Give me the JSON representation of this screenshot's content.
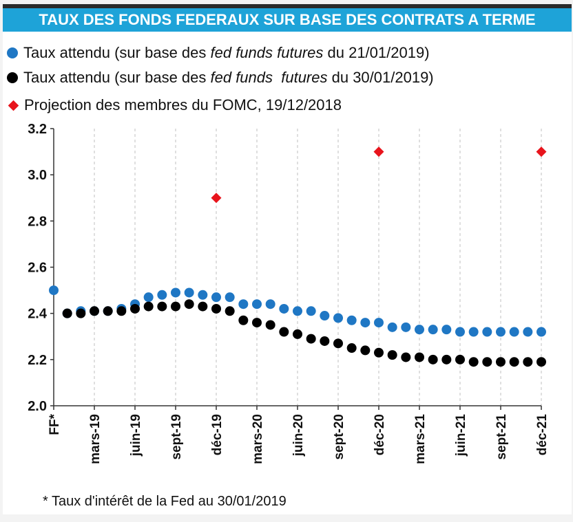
{
  "title": "TAUX DES FONDS FEDERAUX SUR BASE DES CONTRATS A TERME",
  "legend": [
    {
      "prefix": "Taux attendu (sur base des ",
      "italic": "fed funds futures",
      "suffix": " du 21/01/2019)",
      "color": "#1f77c4",
      "marker": "circle"
    },
    {
      "prefix": "Taux attendu (sur base des ",
      "italic": "fed funds  futures",
      "suffix": " du 30/01/2019)",
      "color": "#000000",
      "marker": "circle"
    },
    {
      "prefix": "Projection des membres du FOMC, 19/12/2018",
      "italic": "",
      "suffix": "",
      "color": "#e8141c",
      "marker": "diamond"
    }
  ],
  "footnote": "* Taux d'intérêt de la Fed au 30/01/2019",
  "chart_data": {
    "type": "scatter",
    "ylim": [
      2.0,
      3.2
    ],
    "yticks": [
      "2.0",
      "2.2",
      "2.4",
      "2.6",
      "2.8",
      "3.0",
      "3.2"
    ],
    "xticks": [
      "FF*",
      "mars-19",
      "juin-19",
      "sept-19",
      "déc-19",
      "mars-20",
      "juin-20",
      "sept-20",
      "déc-20",
      "mars-21",
      "juin-21",
      "sept-21",
      "déc-21"
    ],
    "xtick_index": [
      0,
      3,
      6,
      9,
      12,
      15,
      18,
      21,
      24,
      27,
      30,
      33,
      36
    ],
    "series": [
      {
        "name": "Taux attendu (sur base des fed funds futures du 21/01/2019)",
        "color": "#1f77c4",
        "x": [
          0,
          1,
          2,
          3,
          4,
          5,
          6,
          7,
          8,
          9,
          10,
          11,
          12,
          13,
          14,
          15,
          16,
          17,
          18,
          19,
          20,
          21,
          22,
          23,
          24,
          25,
          26,
          27,
          28,
          29,
          30,
          31,
          32,
          33,
          34,
          35,
          36
        ],
        "y": [
          2.5,
          2.4,
          2.41,
          2.41,
          2.41,
          2.42,
          2.44,
          2.47,
          2.48,
          2.49,
          2.49,
          2.48,
          2.47,
          2.47,
          2.44,
          2.44,
          2.44,
          2.42,
          2.41,
          2.41,
          2.39,
          2.38,
          2.37,
          2.36,
          2.36,
          2.34,
          2.34,
          2.33,
          2.33,
          2.33,
          2.32,
          2.32,
          2.32,
          2.32,
          2.32,
          2.32,
          2.32
        ]
      },
      {
        "name": "Taux attendu (sur base des fed funds  futures du 30/01/2019)",
        "color": "#000000",
        "x": [
          1,
          2,
          3,
          4,
          5,
          6,
          7,
          8,
          9,
          10,
          11,
          12,
          13,
          14,
          15,
          16,
          17,
          18,
          19,
          20,
          21,
          22,
          23,
          24,
          25,
          26,
          27,
          28,
          29,
          30,
          31,
          32,
          33,
          34,
          35,
          36
        ],
        "y": [
          2.4,
          2.4,
          2.41,
          2.41,
          2.41,
          2.42,
          2.43,
          2.43,
          2.43,
          2.44,
          2.43,
          2.42,
          2.41,
          2.37,
          2.36,
          2.35,
          2.32,
          2.31,
          2.29,
          2.28,
          2.27,
          2.25,
          2.24,
          2.23,
          2.22,
          2.21,
          2.21,
          2.2,
          2.2,
          2.2,
          2.19,
          2.19,
          2.19,
          2.19,
          2.19,
          2.19
        ]
      },
      {
        "name": "Projection des membres du FOMC, 19/12/2018",
        "color": "#e8141c",
        "marker": "diamond",
        "x": [
          12,
          24,
          36
        ],
        "y": [
          2.9,
          3.1,
          3.1
        ]
      }
    ]
  }
}
